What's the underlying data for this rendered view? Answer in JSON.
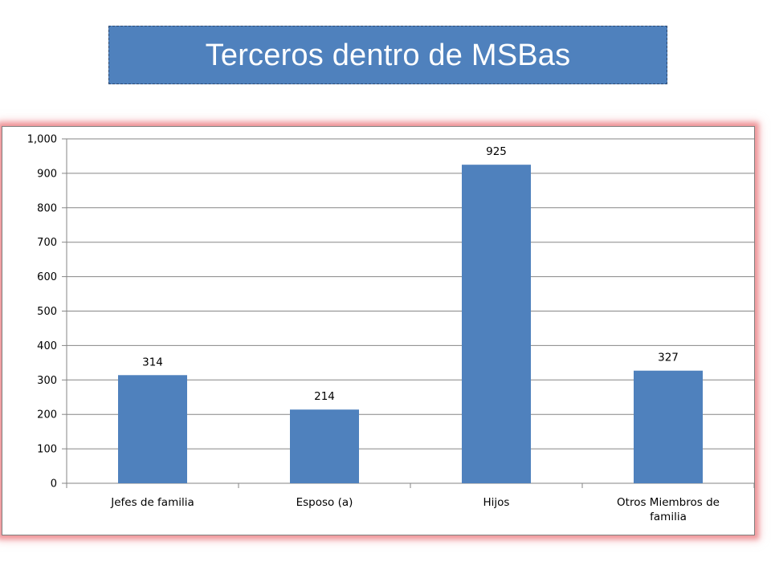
{
  "slide": {
    "title": "Terceros dentro de MSBas"
  },
  "colors": {
    "bar": "#4f81bd",
    "title_background": "#4f81bd",
    "frame_glow": "#e8595e",
    "grid": "#868686"
  },
  "chart_data": {
    "type": "bar",
    "categories": [
      [
        "Jefes de familia"
      ],
      [
        "Esposo (a)"
      ],
      [
        "Hijos"
      ],
      [
        "Otros Miembros de",
        "familia"
      ]
    ],
    "values": [
      314,
      214,
      925,
      327
    ],
    "data_labels": [
      "314",
      "214",
      "925",
      "327"
    ],
    "ylim": [
      0,
      1000
    ],
    "yticks": [
      0,
      100,
      200,
      300,
      400,
      500,
      600,
      700,
      800,
      900,
      1000
    ],
    "ytick_labels": [
      "0",
      "100",
      "200",
      "300",
      "400",
      "500",
      "600",
      "700",
      "800",
      "900",
      "1,000"
    ],
    "grid": true,
    "legend": false,
    "xlabel": "",
    "ylabel": ""
  }
}
